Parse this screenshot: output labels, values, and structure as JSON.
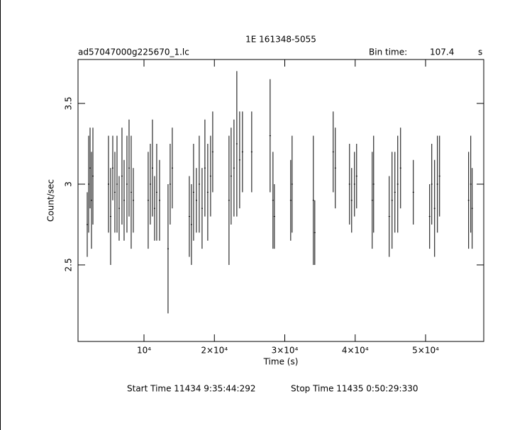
{
  "chart_data": {
    "type": "errorbar",
    "title": "1E 161348-5055",
    "subtitle": "ad57047000g225670_1.lc",
    "bin_time_label": "Bin time:",
    "bin_time": "107.4",
    "bin_time_unit": "s",
    "x_label": "Time (s)",
    "y_label": "Count/sec",
    "start_time_label": "Start Time 11434  9:35:44:292",
    "stop_time_label": "Stop Time 11435  0:50:29:330",
    "color": "#000000",
    "xlim": [
      630,
      58260
    ],
    "ylim": [
      2.026,
      3.772
    ],
    "xticks": [
      {
        "value": 10000,
        "label": "10⁴"
      },
      {
        "value": 20000,
        "label": "2×10⁴"
      },
      {
        "value": 30000,
        "label": "3×10⁴"
      },
      {
        "value": 40000,
        "label": "4×10⁴"
      },
      {
        "value": 50000,
        "label": "5×10⁴"
      }
    ],
    "yticks": [
      2.5,
      3,
      3.5
    ],
    "x": [
      1939,
      2141,
      2342,
      2543,
      2745,
      4960,
      5262,
      5564,
      5866,
      6169,
      6471,
      6873,
      7176,
      7578,
      7880,
      8183,
      8485,
      10599,
      10901,
      11204,
      11506,
      11808,
      12211,
      13419,
      13721,
      14023,
      16440,
      16742,
      17044,
      17447,
      17850,
      18253,
      18655,
      19058,
      19461,
      19763,
      22079,
      22381,
      22784,
      23187,
      23590,
      23992,
      25301,
      27920,
      28323,
      28524,
      30840,
      31041,
      34061,
      34262,
      36879,
      37181,
      39198,
      39500,
      39903,
      40205,
      42421,
      42622,
      44837,
      45240,
      45643,
      46046,
      46448,
      48261,
      50577,
      50879,
      51282,
      51685,
      51987,
      56116,
      56418,
      56620
    ],
    "values": [
      2.75,
      3.0,
      3.1,
      2.9,
      3.05,
      3.0,
      2.8,
      3.1,
      2.95,
      3.0,
      2.85,
      3.05,
      2.9,
      3.0,
      3.1,
      2.95,
      2.9,
      2.9,
      3.0,
      3.1,
      2.85,
      2.95,
      2.9,
      2.6,
      3.0,
      3.1,
      2.8,
      2.75,
      2.95,
      2.9,
      3.0,
      2.85,
      3.1,
      2.95,
      3.05,
      3.2,
      2.9,
      3.05,
      3.1,
      3.25,
      3.15,
      3.2,
      3.2,
      3.3,
      2.9,
      2.8,
      2.9,
      3.0,
      2.9,
      2.7,
      3.2,
      3.1,
      3.0,
      2.9,
      3.0,
      3.05,
      2.9,
      3.0,
      2.8,
      2.9,
      2.95,
      3.0,
      3.1,
      2.95,
      2.8,
      3.0,
      2.85,
      3.0,
      3.05,
      2.9,
      3.0,
      2.85
    ],
    "errors": [
      0.2,
      0.3,
      0.25,
      0.3,
      0.3,
      0.3,
      0.3,
      0.2,
      0.25,
      0.3,
      0.2,
      0.3,
      0.25,
      0.3,
      0.3,
      0.35,
      0.2,
      0.3,
      0.25,
      0.3,
      0.2,
      0.3,
      0.25,
      0.4,
      0.25,
      0.25,
      0.25,
      0.25,
      0.3,
      0.2,
      0.3,
      0.25,
      0.3,
      0.3,
      0.25,
      0.25,
      0.4,
      0.3,
      0.3,
      0.45,
      0.3,
      0.25,
      0.25,
      0.35,
      0.3,
      0.2,
      0.25,
      0.3,
      0.4,
      0.2,
      0.25,
      0.25,
      0.25,
      0.2,
      0.2,
      0.2,
      0.3,
      0.3,
      0.25,
      0.3,
      0.25,
      0.3,
      0.25,
      0.2,
      0.2,
      0.25,
      0.3,
      0.3,
      0.25,
      0.3,
      0.3,
      0.25
    ]
  }
}
